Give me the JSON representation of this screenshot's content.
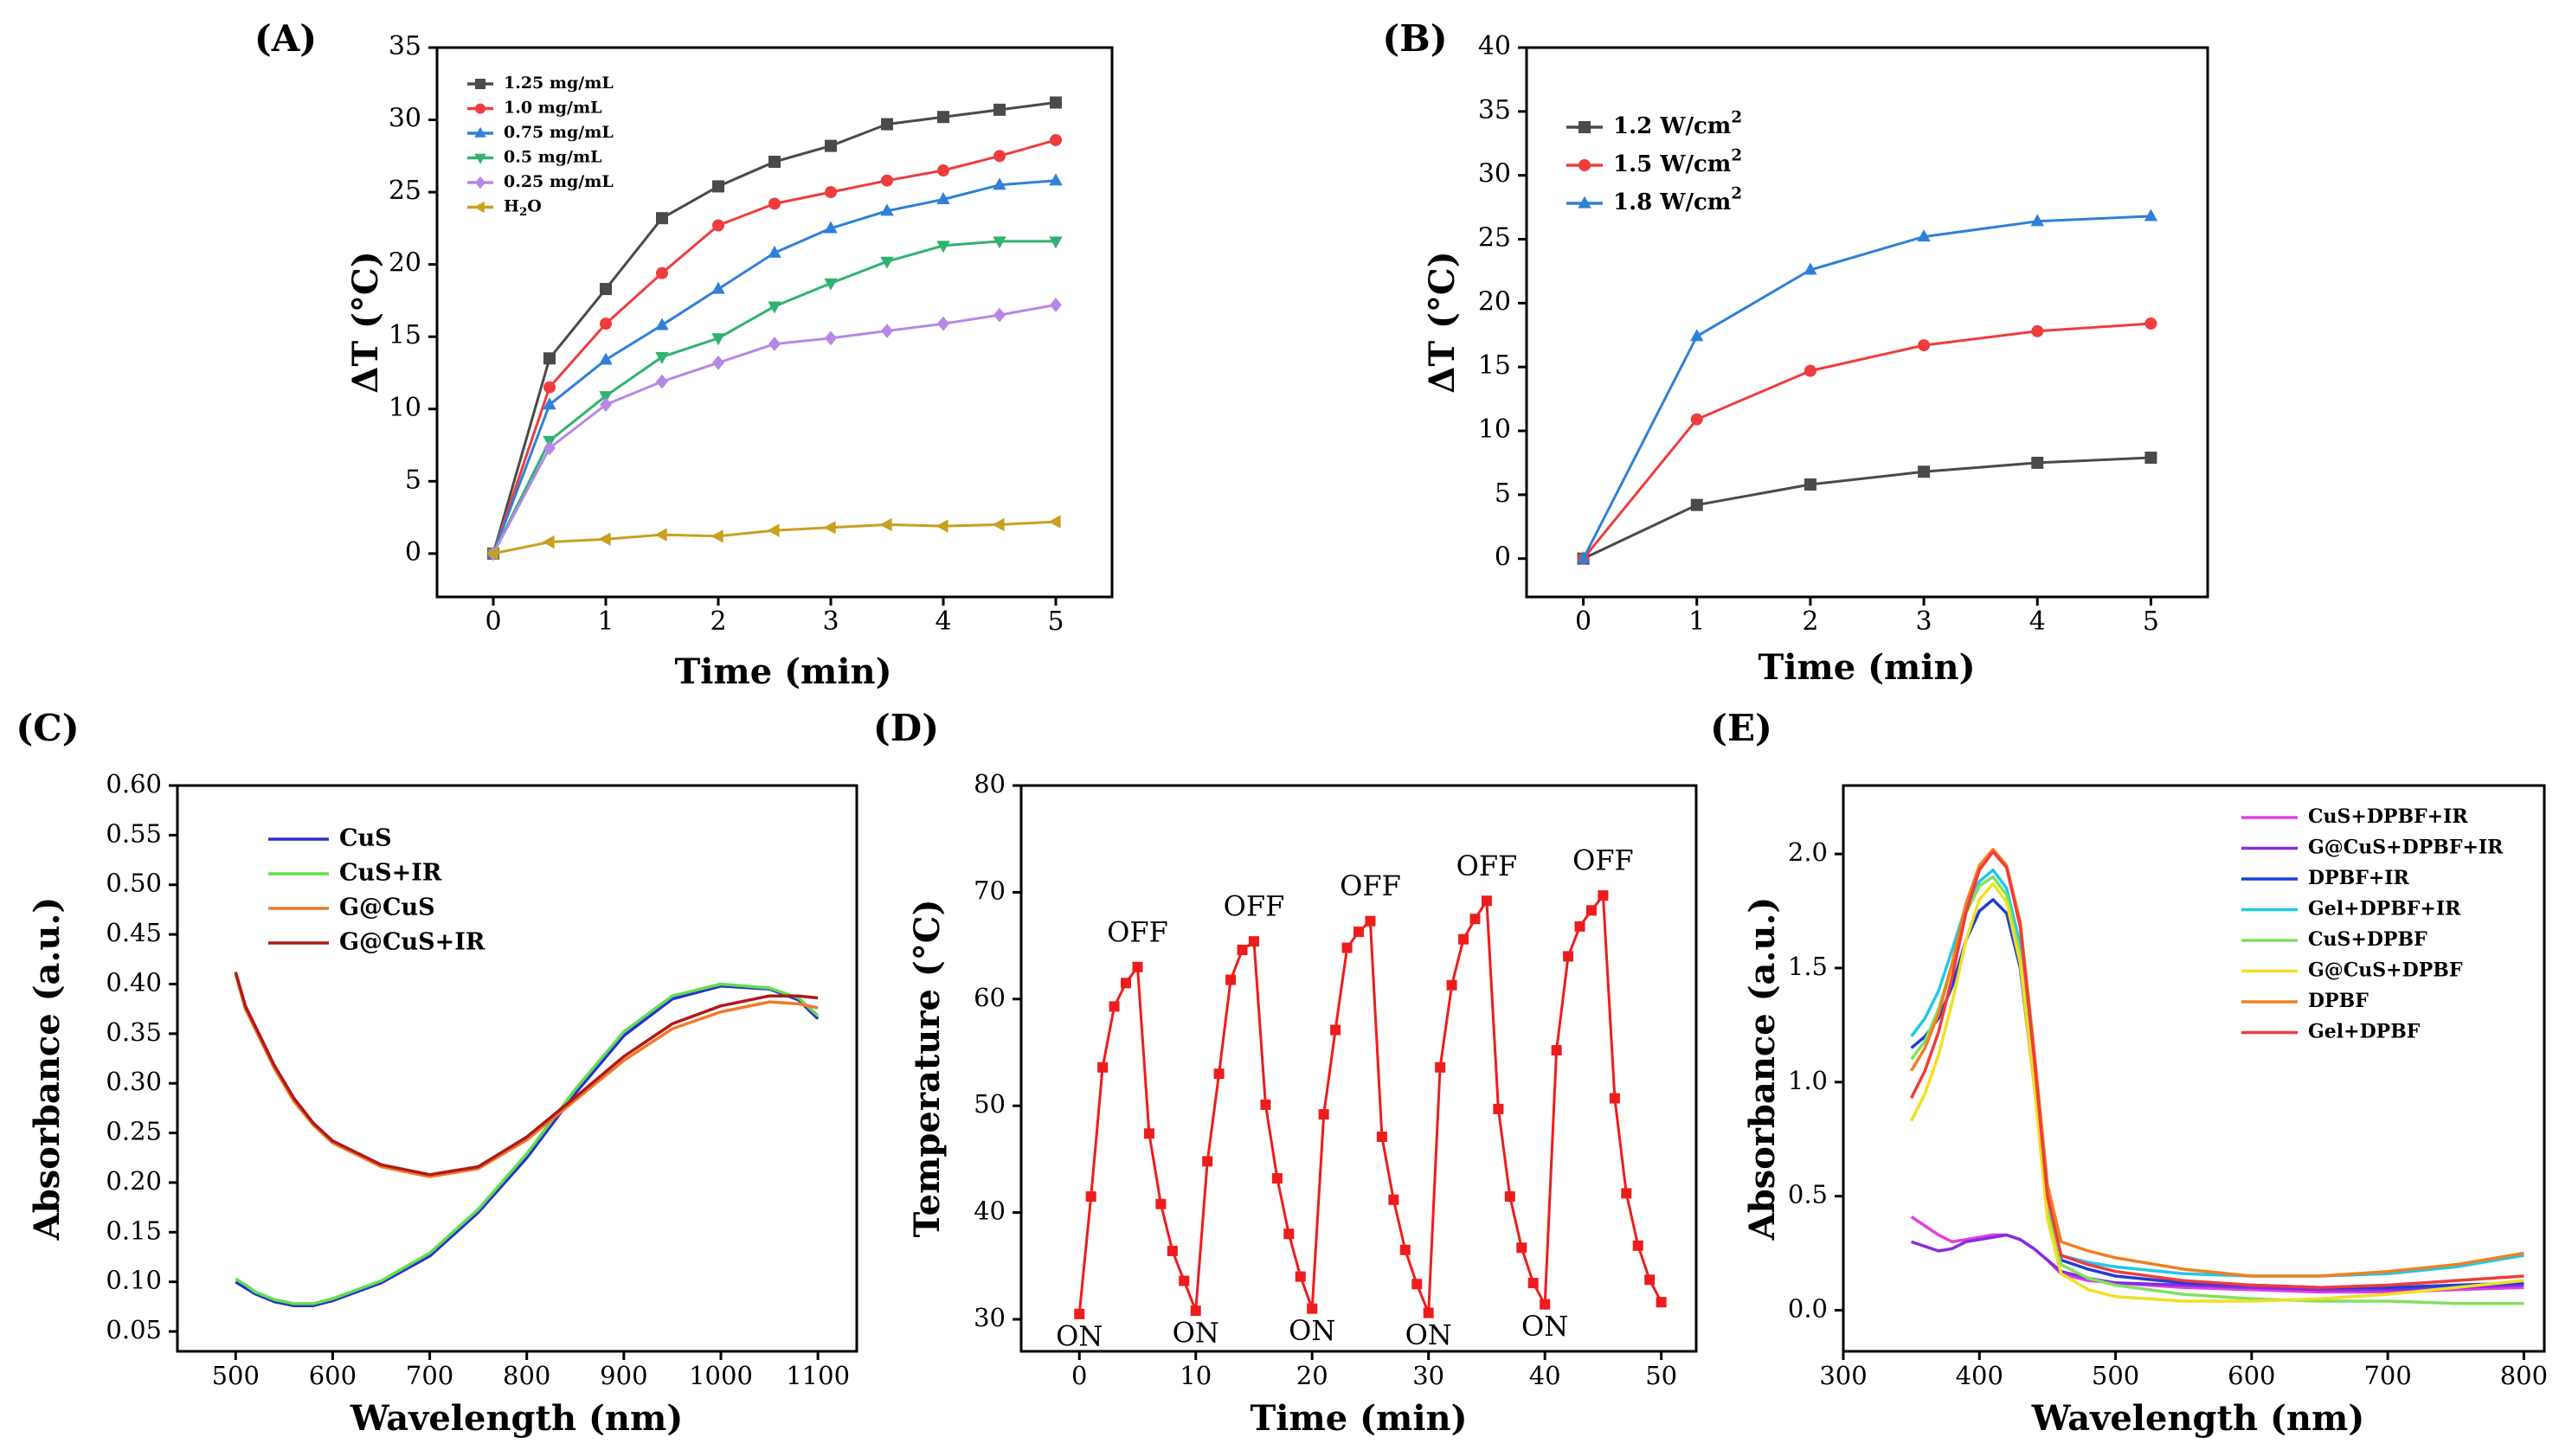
{
  "chart_data": [
    {
      "panel_label": "(A)",
      "type": "line",
      "xlabel": "Time (min)",
      "ylabel": "ΔT (°C)",
      "xlim": [
        -0.5,
        5.5
      ],
      "ylim": [
        -3,
        35
      ],
      "xticks": [
        0,
        1,
        2,
        3,
        4,
        5
      ],
      "yticks": [
        0,
        5,
        10,
        15,
        20,
        25,
        30,
        35
      ],
      "legend": "top-left",
      "x": [
        0,
        0.5,
        1,
        1.5,
        2,
        2.5,
        3,
        3.5,
        4,
        4.5,
        5
      ],
      "series": [
        {
          "name": "1.25 mg/mL",
          "color": "#4a4a4a",
          "marker": "square",
          "values": [
            0,
            13.5,
            18.3,
            23.2,
            25.4,
            27.1,
            28.2,
            29.7,
            30.2,
            30.7,
            31.2
          ]
        },
        {
          "name": "1.0 mg/mL",
          "color": "#f03c3c",
          "marker": "circle",
          "values": [
            0,
            11.5,
            15.9,
            19.4,
            22.7,
            24.2,
            25.0,
            25.8,
            26.5,
            27.5,
            28.6
          ]
        },
        {
          "name": "0.75 mg/mL",
          "color": "#2f80d8",
          "marker": "triangle-up",
          "values": [
            0,
            10.3,
            13.4,
            15.8,
            18.3,
            20.8,
            22.5,
            23.7,
            24.5,
            25.5,
            25.8
          ]
        },
        {
          "name": "0.5 mg/mL",
          "color": "#2fb36f",
          "marker": "triangle-down",
          "values": [
            0,
            7.8,
            10.9,
            13.6,
            14.9,
            17.1,
            18.7,
            20.2,
            21.3,
            21.6,
            21.6
          ]
        },
        {
          "name": "0.25 mg/mL",
          "color": "#b688e6",
          "marker": "diamond",
          "values": [
            0,
            7.3,
            10.3,
            11.9,
            13.2,
            14.5,
            14.9,
            15.4,
            15.9,
            16.5,
            17.2
          ]
        },
        {
          "name": "H2O",
          "color": "#c8a020",
          "marker": "triangle-left",
          "values": [
            0,
            0.8,
            1.0,
            1.3,
            1.2,
            1.6,
            1.8,
            2.0,
            1.9,
            2.0,
            2.2
          ]
        }
      ]
    },
    {
      "panel_label": "(B)",
      "type": "line",
      "xlabel": "Time (min)",
      "ylabel": "ΔT (°C)",
      "xlim": [
        -0.5,
        5.5
      ],
      "ylim": [
        -3,
        40
      ],
      "xticks": [
        0,
        1,
        2,
        3,
        4,
        5
      ],
      "yticks": [
        0,
        5,
        10,
        15,
        20,
        25,
        30,
        35,
        40
      ],
      "legend": "top-left",
      "x": [
        0,
        1,
        2,
        3,
        4,
        5
      ],
      "series": [
        {
          "name": "1.2 W/cm2",
          "color": "#4a4a4a",
          "marker": "square",
          "values": [
            0,
            4.2,
            5.8,
            6.8,
            7.5,
            7.9
          ]
        },
        {
          "name": "1.5 W/cm2",
          "color": "#f03c3c",
          "marker": "circle",
          "values": [
            0,
            10.9,
            14.7,
            16.7,
            17.8,
            18.4
          ]
        },
        {
          "name": "1.8 W/cm2",
          "color": "#2f80d8",
          "marker": "triangle-up",
          "values": [
            0,
            17.4,
            22.6,
            25.2,
            26.4,
            26.8
          ]
        }
      ]
    },
    {
      "panel_label": "(C)",
      "type": "line",
      "xlabel": "Wavelength (nm)",
      "ylabel": "Absorbance (a.u.)",
      "xlim": [
        440,
        1140
      ],
      "ylim": [
        0.03,
        0.6
      ],
      "xticks": [
        500,
        600,
        700,
        800,
        900,
        1000,
        1100
      ],
      "yticks": [
        0.05,
        0.1,
        0.15,
        0.2,
        0.25,
        0.3,
        0.35,
        0.4,
        0.45,
        0.5,
        0.55,
        0.6
      ],
      "ytick_labels": [
        "0.05",
        "0.10",
        "0.15",
        "0.20",
        "0.25",
        "0.30",
        "0.35",
        "0.40",
        "0.45",
        "0.50",
        "0.55",
        "0.60"
      ],
      "legend": "top-left",
      "x": [
        500,
        510,
        520,
        540,
        560,
        580,
        600,
        650,
        700,
        750,
        800,
        850,
        900,
        950,
        1000,
        1050,
        1080,
        1100
      ],
      "series": [
        {
          "name": "CuS",
          "color": "#2b2bd6",
          "values": [
            0.1,
            0.094,
            0.088,
            0.08,
            0.076,
            0.076,
            0.081,
            0.099,
            0.126,
            0.17,
            0.225,
            0.29,
            0.348,
            0.385,
            0.398,
            0.395,
            0.384,
            0.365
          ]
        },
        {
          "name": "CuS+IR",
          "color": "#5fe04a",
          "values": [
            0.103,
            0.097,
            0.09,
            0.082,
            0.078,
            0.078,
            0.083,
            0.101,
            0.129,
            0.173,
            0.229,
            0.294,
            0.352,
            0.388,
            0.4,
            0.396,
            0.386,
            0.368
          ]
        },
        {
          "name": "G@CuS",
          "color": "#f07a2a",
          "values": [
            0.41,
            0.375,
            0.355,
            0.315,
            0.282,
            0.258,
            0.24,
            0.216,
            0.206,
            0.214,
            0.243,
            0.283,
            0.323,
            0.355,
            0.372,
            0.382,
            0.38,
            0.376
          ]
        },
        {
          "name": "G@CuS+IR",
          "color": "#b01818",
          "values": [
            0.412,
            0.378,
            0.358,
            0.318,
            0.285,
            0.26,
            0.242,
            0.218,
            0.208,
            0.216,
            0.246,
            0.286,
            0.327,
            0.36,
            0.378,
            0.388,
            0.388,
            0.386
          ]
        }
      ]
    },
    {
      "panel_label": "(D)",
      "type": "line",
      "xlabel": "Time (min)",
      "ylabel": "Temperature (°C)",
      "xlim": [
        -5,
        53
      ],
      "ylim": [
        27,
        80
      ],
      "xticks": [
        0,
        10,
        20,
        30,
        40,
        50
      ],
      "yticks": [
        30,
        40,
        50,
        60,
        70,
        80
      ],
      "x": [
        0,
        1,
        2,
        3,
        4,
        5,
        6,
        7,
        8,
        9,
        10,
        11,
        12,
        13,
        14,
        15,
        16,
        17,
        18,
        19,
        20,
        21,
        22,
        23,
        24,
        25,
        26,
        27,
        28,
        29,
        30,
        31,
        32,
        33,
        34,
        35,
        36,
        37,
        38,
        39,
        40,
        41,
        42,
        43,
        44,
        45,
        46,
        47,
        48,
        49,
        50
      ],
      "series": [
        {
          "name": "Temperature",
          "color": "#ee1c1c",
          "marker": "square",
          "values": [
            30.5,
            41.5,
            53.6,
            59.3,
            61.5,
            63.0,
            47.4,
            40.8,
            36.4,
            33.6,
            30.8,
            44.8,
            53.0,
            61.8,
            64.6,
            65.4,
            50.1,
            43.2,
            38.0,
            34.0,
            31.0,
            49.2,
            57.1,
            64.8,
            66.3,
            67.3,
            47.1,
            41.2,
            36.5,
            33.3,
            30.6,
            53.6,
            61.3,
            65.6,
            67.5,
            69.2,
            49.7,
            41.5,
            36.7,
            33.4,
            31.4,
            55.2,
            64.0,
            66.8,
            68.3,
            69.7,
            50.7,
            41.8,
            36.9,
            33.7,
            31.6
          ]
        }
      ],
      "annotations": [
        {
          "text": "ON",
          "x": 0,
          "y": 30.5,
          "position": "below"
        },
        {
          "text": "ON",
          "x": 10,
          "y": 30.8,
          "position": "below"
        },
        {
          "text": "ON",
          "x": 20,
          "y": 31.0,
          "position": "below"
        },
        {
          "text": "ON",
          "x": 30,
          "y": 30.6,
          "position": "below"
        },
        {
          "text": "ON",
          "x": 40,
          "y": 31.4,
          "position": "below"
        },
        {
          "text": "OFF",
          "x": 5,
          "y": 63.0,
          "position": "above"
        },
        {
          "text": "OFF",
          "x": 15,
          "y": 65.4,
          "position": "above"
        },
        {
          "text": "OFF",
          "x": 25,
          "y": 67.3,
          "position": "above"
        },
        {
          "text": "OFF",
          "x": 35,
          "y": 69.2,
          "position": "above"
        },
        {
          "text": "OFF",
          "x": 45,
          "y": 69.7,
          "position": "above"
        }
      ]
    },
    {
      "panel_label": "(E)",
      "type": "line",
      "xlabel": "Wavelength (nm)",
      "ylabel": "Absorbance (a.u.)",
      "xlim": [
        300,
        815
      ],
      "ylim": [
        -0.18,
        2.3
      ],
      "xticks": [
        300,
        400,
        500,
        600,
        700,
        800
      ],
      "yticks": [
        0.0,
        0.5,
        1.0,
        1.5,
        2.0
      ],
      "ytick_labels": [
        "0.0",
        "0.5",
        "1.0",
        "1.5",
        "2.0"
      ],
      "legend": "top-right",
      "x": [
        350,
        360,
        370,
        380,
        390,
        400,
        410,
        420,
        430,
        440,
        450,
        460,
        480,
        500,
        550,
        600,
        650,
        700,
        750,
        800
      ],
      "series": [
        {
          "name": "CuS+DPBF+IR",
          "color": "#e040e0",
          "values": [
            0.41,
            0.37,
            0.33,
            0.3,
            0.31,
            0.32,
            0.33,
            0.33,
            0.31,
            0.27,
            0.22,
            0.16,
            0.13,
            0.12,
            0.1,
            0.09,
            0.08,
            0.08,
            0.09,
            0.1
          ]
        },
        {
          "name": "G@CuS+DPBF+IR",
          "color": "#8a2be2",
          "values": [
            0.3,
            0.28,
            0.26,
            0.27,
            0.3,
            0.31,
            0.32,
            0.33,
            0.31,
            0.27,
            0.22,
            0.17,
            0.14,
            0.12,
            0.11,
            0.1,
            0.09,
            0.09,
            0.1,
            0.11
          ]
        },
        {
          "name": "DPBF+IR",
          "color": "#1c3fd6",
          "values": [
            1.15,
            1.2,
            1.28,
            1.42,
            1.62,
            1.75,
            1.8,
            1.74,
            1.5,
            1.0,
            0.45,
            0.22,
            0.18,
            0.15,
            0.12,
            0.11,
            0.1,
            0.1,
            0.11,
            0.12
          ]
        },
        {
          "name": "Gel+DPBF+IR",
          "color": "#20c8e8",
          "values": [
            1.2,
            1.28,
            1.4,
            1.58,
            1.77,
            1.88,
            1.93,
            1.85,
            1.6,
            1.08,
            0.48,
            0.24,
            0.21,
            0.19,
            0.16,
            0.15,
            0.15,
            0.16,
            0.19,
            0.24
          ]
        },
        {
          "name": "CuS+DPBF",
          "color": "#80e060",
          "values": [
            1.1,
            1.18,
            1.32,
            1.52,
            1.74,
            1.86,
            1.9,
            1.82,
            1.56,
            1.04,
            0.44,
            0.2,
            0.14,
            0.11,
            0.07,
            0.05,
            0.04,
            0.04,
            0.03,
            0.03
          ]
        },
        {
          "name": "G@CuS+DPBF",
          "color": "#f0e020",
          "values": [
            0.83,
            0.95,
            1.12,
            1.35,
            1.62,
            1.8,
            1.87,
            1.79,
            1.52,
            1.0,
            0.4,
            0.16,
            0.09,
            0.06,
            0.04,
            0.04,
            0.05,
            0.07,
            0.1,
            0.13
          ]
        },
        {
          "name": "DPBF",
          "color": "#f08020",
          "values": [
            1.05,
            1.15,
            1.3,
            1.52,
            1.78,
            1.95,
            2.02,
            1.95,
            1.7,
            1.15,
            0.55,
            0.3,
            0.26,
            0.23,
            0.18,
            0.15,
            0.15,
            0.17,
            0.2,
            0.25
          ]
        },
        {
          "name": "Gel+DPBF",
          "color": "#f03c3c",
          "values": [
            0.93,
            1.05,
            1.22,
            1.46,
            1.74,
            1.93,
            2.01,
            1.94,
            1.68,
            1.12,
            0.5,
            0.24,
            0.2,
            0.17,
            0.13,
            0.11,
            0.1,
            0.11,
            0.13,
            0.15
          ]
        }
      ]
    }
  ]
}
